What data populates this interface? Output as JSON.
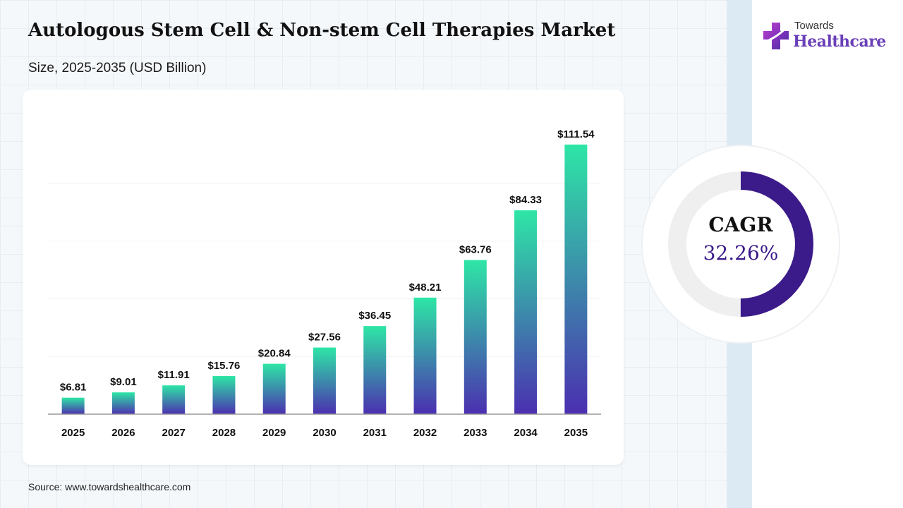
{
  "header": {
    "title": "Autologous Stem Cell & Non-stem Cell Therapies Market",
    "subtitle": "Size, 2025-2035 (USD Billion)"
  },
  "logo": {
    "line1": "Towards",
    "line2": "Healthcare",
    "icon": "medical-cross-icon"
  },
  "chart_data": {
    "type": "bar",
    "categories": [
      "2025",
      "2026",
      "2027",
      "2028",
      "2029",
      "2030",
      "2031",
      "2032",
      "2033",
      "2034",
      "2035"
    ],
    "values": [
      6.81,
      9.01,
      11.91,
      15.76,
      20.84,
      27.56,
      36.45,
      48.21,
      63.76,
      84.33,
      111.54
    ],
    "value_labels": [
      "$6.81",
      "$9.01",
      "$11.91",
      "$15.76",
      "$20.84",
      "$27.56",
      "$36.45",
      "$48.21",
      "$63.76",
      "$84.33",
      "$111.54"
    ],
    "title": "",
    "xlabel": "",
    "ylabel": "",
    "ylim": [
      0,
      115
    ],
    "grid": true,
    "colors": {
      "bar_top": "#2ee6a6",
      "bar_bottom": "#4b2fb0",
      "axis": "#999999"
    }
  },
  "cagr": {
    "label": "CAGR",
    "value": "32.26%",
    "ring_fraction": 0.5,
    "colors": {
      "arc": "#3b1a8a",
      "track": "#efefef"
    }
  },
  "footer": {
    "source": "Source: www.towardshealthcare.com"
  }
}
